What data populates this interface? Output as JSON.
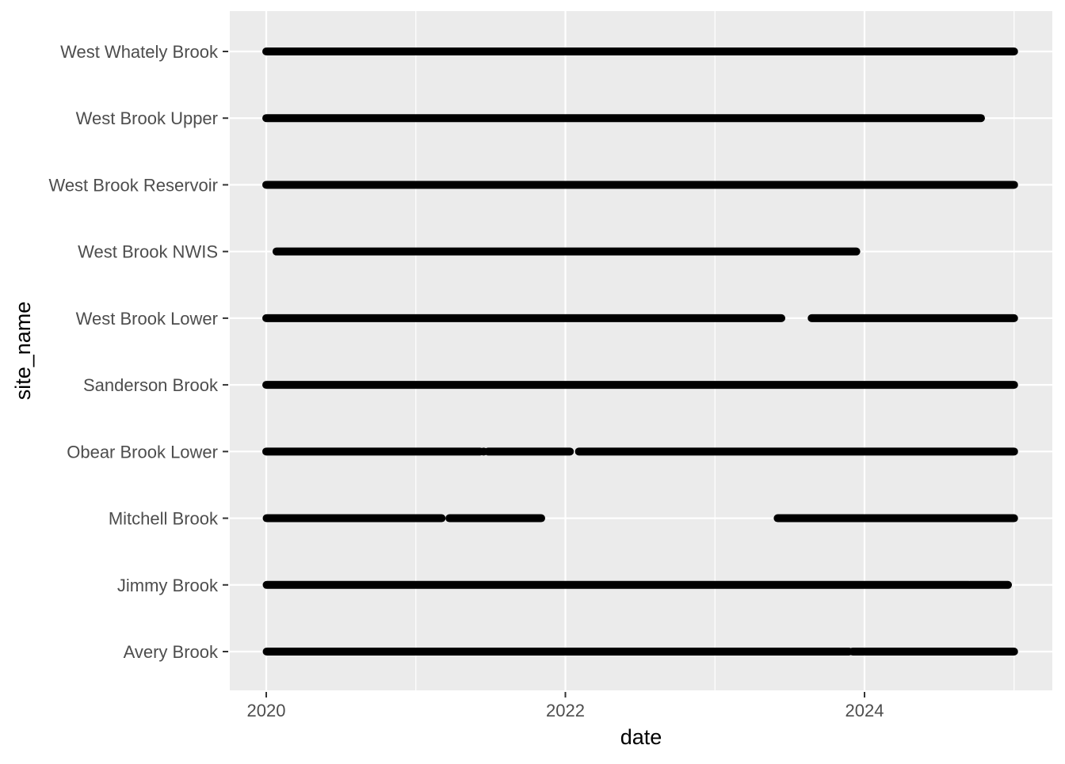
{
  "chart_data": {
    "type": "timeline-points",
    "xlabel": "date",
    "ylabel": "site_name",
    "xlim": [
      "2019-11-27",
      "2025-02-04"
    ],
    "x_ticks": [
      {
        "label": "2020",
        "date": "2020-01-01"
      },
      {
        "label": "2022",
        "date": "2022-01-01"
      },
      {
        "label": "2024",
        "date": "2024-01-01"
      }
    ],
    "x_minor_ticks": [
      "2021-01-01",
      "2023-01-01",
      "2025-01-01"
    ],
    "grid": true,
    "legend": "none",
    "colors": {
      "panel": "#EBEBEB",
      "grid": "#FFFFFF",
      "points": "#000000",
      "axis_text": "#4D4D4D"
    },
    "sites": [
      {
        "name": "West Whately Brook",
        "segments": [
          [
            "2020-01-01",
            "2025-01-01"
          ]
        ]
      },
      {
        "name": "West Brook Upper",
        "segments": [
          [
            "2020-01-01",
            "2024-10-12"
          ]
        ]
      },
      {
        "name": "West Brook Reservoir",
        "segments": [
          [
            "2020-01-01",
            "2025-01-01"
          ]
        ]
      },
      {
        "name": "West Brook NWIS",
        "segments": [
          [
            "2020-01-26",
            "2023-12-12"
          ]
        ]
      },
      {
        "name": "West Brook Lower",
        "segments": [
          [
            "2020-01-01",
            "2023-06-12"
          ],
          [
            "2023-08-25",
            "2025-01-01"
          ]
        ]
      },
      {
        "name": "Sanderson Brook",
        "segments": [
          [
            "2020-01-01",
            "2025-01-01"
          ]
        ]
      },
      {
        "name": "Obear Brook Lower",
        "segments": [
          [
            "2020-01-01",
            "2021-06-07"
          ],
          [
            "2021-06-15",
            "2021-06-16"
          ],
          [
            "2021-06-26",
            "2022-01-12"
          ],
          [
            "2022-02-03",
            "2025-01-01"
          ]
        ]
      },
      {
        "name": "Mitchell Brook",
        "segments": [
          [
            "2020-01-02",
            "2021-03-05"
          ],
          [
            "2021-03-24",
            "2021-11-03"
          ],
          [
            "2023-06-03",
            "2025-01-01"
          ]
        ]
      },
      {
        "name": "Jimmy Brook",
        "segments": [
          [
            "2020-01-02",
            "2024-09-12"
          ],
          [
            "2024-09-15",
            "2024-12-17"
          ]
        ]
      },
      {
        "name": "Avery Brook",
        "segments": [
          [
            "2020-01-02",
            "2023-11-24"
          ],
          [
            "2023-12-03",
            "2025-01-01"
          ]
        ]
      }
    ]
  }
}
